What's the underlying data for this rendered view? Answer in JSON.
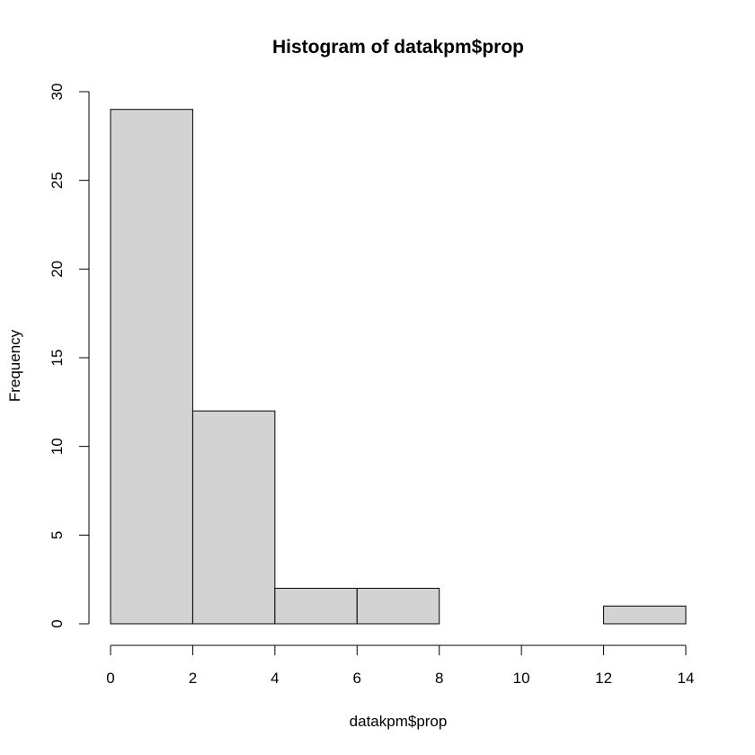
{
  "chart_data": {
    "type": "bar",
    "title": "Histogram of datakpm$prop",
    "xlabel": "datakpm$prop",
    "ylabel": "Frequency",
    "bins": [
      {
        "start": 0,
        "end": 2,
        "count": 29
      },
      {
        "start": 2,
        "end": 4,
        "count": 12
      },
      {
        "start": 4,
        "end": 6,
        "count": 2
      },
      {
        "start": 6,
        "end": 8,
        "count": 2
      },
      {
        "start": 8,
        "end": 10,
        "count": 0
      },
      {
        "start": 10,
        "end": 12,
        "count": 0
      },
      {
        "start": 12,
        "end": 14,
        "count": 1
      }
    ],
    "xlim": [
      0,
      14
    ],
    "ylim": [
      0,
      30
    ],
    "x_ticks": [
      "0",
      "2",
      "4",
      "6",
      "8",
      "10",
      "12",
      "14"
    ],
    "y_ticks": [
      "0",
      "5",
      "10",
      "15",
      "20",
      "25",
      "30"
    ],
    "grid": false,
    "bar_fill": "#d3d3d3",
    "bar_stroke": "#000000"
  }
}
